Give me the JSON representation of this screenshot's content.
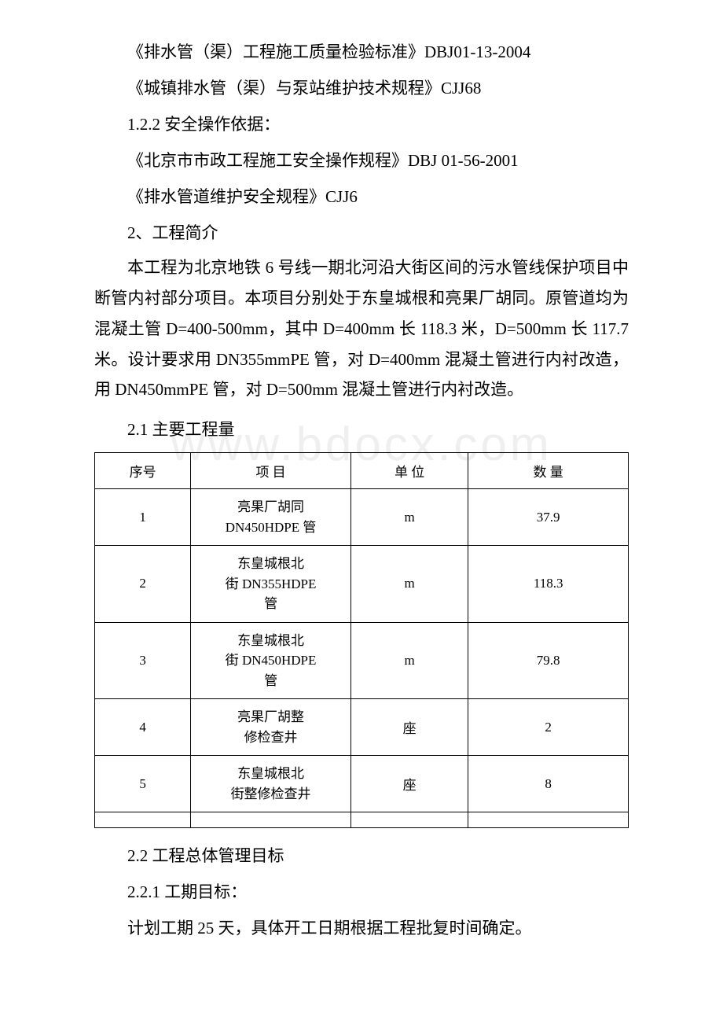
{
  "watermark": "www.bdocx.com",
  "refs": [
    "《排水管（渠）工程施工质量检验标准》DBJ01-13-2004",
    "《城镇排水管（渠）与泵站维护技术规程》CJJ68",
    "1.2.2 安全操作依据：",
    "《北京市市政工程施工安全操作规程》DBJ 01-56-2001",
    "《排水管道维护安全规程》CJJ6"
  ],
  "section2_heading": "2、工程简介",
  "section2_body": "本工程为北京地铁 6 号线一期北河沿大街区间的污水管线保护项目中断管内衬部分项目。本项目分别处于东皇城根和亮果厂胡同。原管道均为混凝土管 D=400-500mm，其中 D=400mm 长 118.3 米，D=500mm 长 117.7 米。设计要求用 DN355mmPE 管，对 D=400mm 混凝土管进行内衬改造，用 DN450mmPE 管，对 D=500mm 混凝土管进行内衬改造。",
  "section21_heading": "2.1 主要工程量",
  "table": {
    "columns": [
      "序号",
      "项 目",
      "单 位",
      "数 量"
    ],
    "col_widths_pct": [
      18,
      30,
      22,
      30
    ],
    "border_color": "#000000",
    "font_size": 17,
    "rows": [
      {
        "seq": "1",
        "item_l1": "亮果厂胡同",
        "item_l2": "DN450HDPE 管",
        "unit": "m",
        "qty": "37.9"
      },
      {
        "seq": "2",
        "item_l1": "东皇城根北",
        "item_l2": "街 DN355HDPE",
        "item_l3": "管",
        "unit": "m",
        "qty": "118.3"
      },
      {
        "seq": "3",
        "item_l1": "东皇城根北",
        "item_l2": "街 DN450HDPE",
        "item_l3": "管",
        "unit": "m",
        "qty": "79.8"
      },
      {
        "seq": "4",
        "item_l1": "亮果厂胡整",
        "item_l2": "修检查井",
        "unit": "座",
        "qty": "2"
      },
      {
        "seq": "5",
        "item_l1": "东皇城根北",
        "item_l2": "街整修检查井",
        "unit": "座",
        "qty": "8"
      }
    ]
  },
  "section22_heading": "2.2 工程总体管理目标",
  "section221_heading": "2.2.1 工期目标：",
  "section221_body": "计划工期 25 天，具体开工日期根据工程批复时间确定。",
  "colors": {
    "background": "#ffffff",
    "text": "#000000",
    "watermark": "#efefef"
  },
  "typography": {
    "body_font_size": 21,
    "table_font_size": 17,
    "watermark_font_size": 60,
    "font_family": "SimSun"
  }
}
